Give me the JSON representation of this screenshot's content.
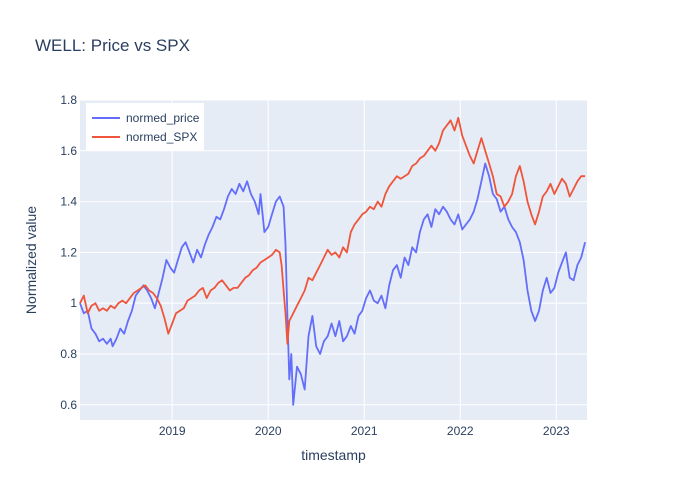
{
  "chart_data": {
    "type": "line",
    "title": "WELL: Price vs SPX",
    "xlabel": "timestamp",
    "ylabel": "Normalized value",
    "xlim": [
      2018.04,
      2023.32
    ],
    "ylim": [
      0.54,
      1.8
    ],
    "x_ticks": [
      {
        "value": 2019,
        "label": "2019"
      },
      {
        "value": 2020,
        "label": "2020"
      },
      {
        "value": 2021,
        "label": "2021"
      },
      {
        "value": 2022,
        "label": "2022"
      },
      {
        "value": 2023,
        "label": "2023"
      }
    ],
    "y_ticks": [
      {
        "value": 0.6,
        "label": "0.6"
      },
      {
        "value": 0.8,
        "label": "0.8"
      },
      {
        "value": 1.0,
        "label": "1"
      },
      {
        "value": 1.2,
        "label": "1.2"
      },
      {
        "value": 1.4,
        "label": "1.4"
      },
      {
        "value": 1.6,
        "label": "1.6"
      },
      {
        "value": 1.8,
        "label": "1.8"
      }
    ],
    "grid": true,
    "legend_position": "top-left",
    "series": [
      {
        "name": "normed_price",
        "color": "#636efa",
        "points": [
          [
            2018.04,
            1.0
          ],
          [
            2018.08,
            0.96
          ],
          [
            2018.12,
            0.97
          ],
          [
            2018.16,
            0.9
          ],
          [
            2018.2,
            0.88
          ],
          [
            2018.24,
            0.85
          ],
          [
            2018.28,
            0.86
          ],
          [
            2018.32,
            0.84
          ],
          [
            2018.36,
            0.86
          ],
          [
            2018.38,
            0.83
          ],
          [
            2018.42,
            0.86
          ],
          [
            2018.46,
            0.9
          ],
          [
            2018.5,
            0.88
          ],
          [
            2018.54,
            0.93
          ],
          [
            2018.58,
            0.97
          ],
          [
            2018.62,
            1.03
          ],
          [
            2018.66,
            1.05
          ],
          [
            2018.7,
            1.07
          ],
          [
            2018.74,
            1.05
          ],
          [
            2018.78,
            1.02
          ],
          [
            2018.82,
            0.98
          ],
          [
            2018.86,
            1.04
          ],
          [
            2018.9,
            1.1
          ],
          [
            2018.94,
            1.17
          ],
          [
            2018.98,
            1.14
          ],
          [
            2019.02,
            1.12
          ],
          [
            2019.06,
            1.17
          ],
          [
            2019.1,
            1.22
          ],
          [
            2019.14,
            1.24
          ],
          [
            2019.18,
            1.2
          ],
          [
            2019.22,
            1.16
          ],
          [
            2019.26,
            1.21
          ],
          [
            2019.3,
            1.18
          ],
          [
            2019.34,
            1.23
          ],
          [
            2019.38,
            1.27
          ],
          [
            2019.42,
            1.3
          ],
          [
            2019.46,
            1.34
          ],
          [
            2019.5,
            1.33
          ],
          [
            2019.54,
            1.37
          ],
          [
            2019.58,
            1.42
          ],
          [
            2019.62,
            1.45
          ],
          [
            2019.66,
            1.43
          ],
          [
            2019.7,
            1.47
          ],
          [
            2019.74,
            1.44
          ],
          [
            2019.78,
            1.48
          ],
          [
            2019.82,
            1.43
          ],
          [
            2019.86,
            1.4
          ],
          [
            2019.9,
            1.35
          ],
          [
            2019.92,
            1.43
          ],
          [
            2019.96,
            1.28
          ],
          [
            2020.0,
            1.3
          ],
          [
            2020.04,
            1.35
          ],
          [
            2020.08,
            1.4
          ],
          [
            2020.12,
            1.42
          ],
          [
            2020.16,
            1.38
          ],
          [
            2020.18,
            1.23
          ],
          [
            2020.2,
            0.95
          ],
          [
            2020.22,
            0.7
          ],
          [
            2020.24,
            0.8
          ],
          [
            2020.26,
            0.6
          ],
          [
            2020.3,
            0.75
          ],
          [
            2020.34,
            0.72
          ],
          [
            2020.38,
            0.66
          ],
          [
            2020.42,
            0.87
          ],
          [
            2020.46,
            0.95
          ],
          [
            2020.5,
            0.83
          ],
          [
            2020.54,
            0.8
          ],
          [
            2020.58,
            0.85
          ],
          [
            2020.62,
            0.87
          ],
          [
            2020.66,
            0.92
          ],
          [
            2020.7,
            0.87
          ],
          [
            2020.74,
            0.93
          ],
          [
            2020.78,
            0.85
          ],
          [
            2020.82,
            0.87
          ],
          [
            2020.86,
            0.91
          ],
          [
            2020.9,
            0.88
          ],
          [
            2020.94,
            0.95
          ],
          [
            2020.98,
            0.97
          ],
          [
            2021.02,
            1.02
          ],
          [
            2021.06,
            1.05
          ],
          [
            2021.1,
            1.01
          ],
          [
            2021.14,
            1.0
          ],
          [
            2021.18,
            1.03
          ],
          [
            2021.22,
            0.98
          ],
          [
            2021.26,
            1.07
          ],
          [
            2021.3,
            1.13
          ],
          [
            2021.34,
            1.15
          ],
          [
            2021.38,
            1.1
          ],
          [
            2021.42,
            1.18
          ],
          [
            2021.46,
            1.15
          ],
          [
            2021.5,
            1.22
          ],
          [
            2021.54,
            1.2
          ],
          [
            2021.58,
            1.28
          ],
          [
            2021.62,
            1.33
          ],
          [
            2021.66,
            1.35
          ],
          [
            2021.7,
            1.3
          ],
          [
            2021.74,
            1.37
          ],
          [
            2021.78,
            1.35
          ],
          [
            2021.82,
            1.38
          ],
          [
            2021.86,
            1.36
          ],
          [
            2021.9,
            1.33
          ],
          [
            2021.94,
            1.31
          ],
          [
            2021.98,
            1.35
          ],
          [
            2022.02,
            1.29
          ],
          [
            2022.06,
            1.31
          ],
          [
            2022.1,
            1.33
          ],
          [
            2022.14,
            1.36
          ],
          [
            2022.18,
            1.41
          ],
          [
            2022.22,
            1.48
          ],
          [
            2022.26,
            1.55
          ],
          [
            2022.3,
            1.5
          ],
          [
            2022.34,
            1.43
          ],
          [
            2022.38,
            1.41
          ],
          [
            2022.42,
            1.36
          ],
          [
            2022.46,
            1.38
          ],
          [
            2022.5,
            1.33
          ],
          [
            2022.54,
            1.3
          ],
          [
            2022.58,
            1.28
          ],
          [
            2022.62,
            1.24
          ],
          [
            2022.66,
            1.17
          ],
          [
            2022.7,
            1.05
          ],
          [
            2022.74,
            0.97
          ],
          [
            2022.78,
            0.93
          ],
          [
            2022.82,
            0.97
          ],
          [
            2022.86,
            1.05
          ],
          [
            2022.9,
            1.1
          ],
          [
            2022.94,
            1.04
          ],
          [
            2022.98,
            1.06
          ],
          [
            2023.02,
            1.12
          ],
          [
            2023.06,
            1.16
          ],
          [
            2023.1,
            1.2
          ],
          [
            2023.14,
            1.1
          ],
          [
            2023.18,
            1.09
          ],
          [
            2023.22,
            1.15
          ],
          [
            2023.26,
            1.18
          ],
          [
            2023.3,
            1.24
          ]
        ]
      },
      {
        "name": "normed_SPX",
        "color": "#ef553b",
        "points": [
          [
            2018.04,
            1.0
          ],
          [
            2018.08,
            1.03
          ],
          [
            2018.12,
            0.96
          ],
          [
            2018.16,
            0.99
          ],
          [
            2018.2,
            1.0
          ],
          [
            2018.24,
            0.97
          ],
          [
            2018.28,
            0.98
          ],
          [
            2018.32,
            0.97
          ],
          [
            2018.36,
            0.99
          ],
          [
            2018.4,
            0.98
          ],
          [
            2018.44,
            1.0
          ],
          [
            2018.48,
            1.01
          ],
          [
            2018.52,
            1.0
          ],
          [
            2018.56,
            1.02
          ],
          [
            2018.6,
            1.04
          ],
          [
            2018.64,
            1.05
          ],
          [
            2018.68,
            1.06
          ],
          [
            2018.72,
            1.07
          ],
          [
            2018.76,
            1.05
          ],
          [
            2018.8,
            1.04
          ],
          [
            2018.84,
            1.02
          ],
          [
            2018.88,
            0.99
          ],
          [
            2018.92,
            0.94
          ],
          [
            2018.96,
            0.88
          ],
          [
            2019.0,
            0.92
          ],
          [
            2019.04,
            0.96
          ],
          [
            2019.08,
            0.97
          ],
          [
            2019.12,
            0.98
          ],
          [
            2019.16,
            1.01
          ],
          [
            2019.2,
            1.02
          ],
          [
            2019.24,
            1.03
          ],
          [
            2019.28,
            1.05
          ],
          [
            2019.32,
            1.06
          ],
          [
            2019.36,
            1.02
          ],
          [
            2019.4,
            1.05
          ],
          [
            2019.44,
            1.06
          ],
          [
            2019.48,
            1.08
          ],
          [
            2019.52,
            1.09
          ],
          [
            2019.56,
            1.07
          ],
          [
            2019.6,
            1.05
          ],
          [
            2019.64,
            1.06
          ],
          [
            2019.68,
            1.06
          ],
          [
            2019.72,
            1.08
          ],
          [
            2019.76,
            1.1
          ],
          [
            2019.8,
            1.11
          ],
          [
            2019.84,
            1.13
          ],
          [
            2019.88,
            1.14
          ],
          [
            2019.92,
            1.16
          ],
          [
            2019.96,
            1.17
          ],
          [
            2020.0,
            1.18
          ],
          [
            2020.04,
            1.19
          ],
          [
            2020.08,
            1.21
          ],
          [
            2020.12,
            1.2
          ],
          [
            2020.14,
            1.15
          ],
          [
            2020.16,
            1.05
          ],
          [
            2020.18,
            0.96
          ],
          [
            2020.2,
            0.84
          ],
          [
            2020.22,
            0.93
          ],
          [
            2020.26,
            0.96
          ],
          [
            2020.3,
            0.99
          ],
          [
            2020.34,
            1.02
          ],
          [
            2020.38,
            1.05
          ],
          [
            2020.42,
            1.1
          ],
          [
            2020.46,
            1.09
          ],
          [
            2020.5,
            1.12
          ],
          [
            2020.54,
            1.15
          ],
          [
            2020.58,
            1.18
          ],
          [
            2020.62,
            1.21
          ],
          [
            2020.66,
            1.19
          ],
          [
            2020.7,
            1.2
          ],
          [
            2020.74,
            1.18
          ],
          [
            2020.78,
            1.22
          ],
          [
            2020.82,
            1.2
          ],
          [
            2020.86,
            1.28
          ],
          [
            2020.9,
            1.31
          ],
          [
            2020.94,
            1.33
          ],
          [
            2020.98,
            1.35
          ],
          [
            2021.02,
            1.36
          ],
          [
            2021.06,
            1.38
          ],
          [
            2021.1,
            1.37
          ],
          [
            2021.14,
            1.4
          ],
          [
            2021.18,
            1.38
          ],
          [
            2021.22,
            1.43
          ],
          [
            2021.26,
            1.46
          ],
          [
            2021.3,
            1.48
          ],
          [
            2021.34,
            1.5
          ],
          [
            2021.38,
            1.49
          ],
          [
            2021.42,
            1.5
          ],
          [
            2021.46,
            1.51
          ],
          [
            2021.5,
            1.54
          ],
          [
            2021.54,
            1.55
          ],
          [
            2021.58,
            1.57
          ],
          [
            2021.62,
            1.58
          ],
          [
            2021.66,
            1.6
          ],
          [
            2021.7,
            1.62
          ],
          [
            2021.74,
            1.6
          ],
          [
            2021.78,
            1.63
          ],
          [
            2021.82,
            1.68
          ],
          [
            2021.86,
            1.7
          ],
          [
            2021.9,
            1.72
          ],
          [
            2021.94,
            1.68
          ],
          [
            2021.98,
            1.73
          ],
          [
            2022.02,
            1.66
          ],
          [
            2022.06,
            1.62
          ],
          [
            2022.1,
            1.58
          ],
          [
            2022.14,
            1.55
          ],
          [
            2022.18,
            1.6
          ],
          [
            2022.22,
            1.65
          ],
          [
            2022.26,
            1.6
          ],
          [
            2022.3,
            1.55
          ],
          [
            2022.34,
            1.5
          ],
          [
            2022.38,
            1.43
          ],
          [
            2022.42,
            1.42
          ],
          [
            2022.46,
            1.38
          ],
          [
            2022.5,
            1.4
          ],
          [
            2022.54,
            1.43
          ],
          [
            2022.58,
            1.5
          ],
          [
            2022.62,
            1.54
          ],
          [
            2022.66,
            1.48
          ],
          [
            2022.7,
            1.4
          ],
          [
            2022.74,
            1.35
          ],
          [
            2022.78,
            1.31
          ],
          [
            2022.82,
            1.36
          ],
          [
            2022.86,
            1.42
          ],
          [
            2022.9,
            1.44
          ],
          [
            2022.94,
            1.47
          ],
          [
            2022.98,
            1.43
          ],
          [
            2023.02,
            1.46
          ],
          [
            2023.06,
            1.49
          ],
          [
            2023.1,
            1.47
          ],
          [
            2023.14,
            1.42
          ],
          [
            2023.18,
            1.45
          ],
          [
            2023.22,
            1.48
          ],
          [
            2023.26,
            1.5
          ],
          [
            2023.3,
            1.5
          ]
        ]
      }
    ]
  }
}
